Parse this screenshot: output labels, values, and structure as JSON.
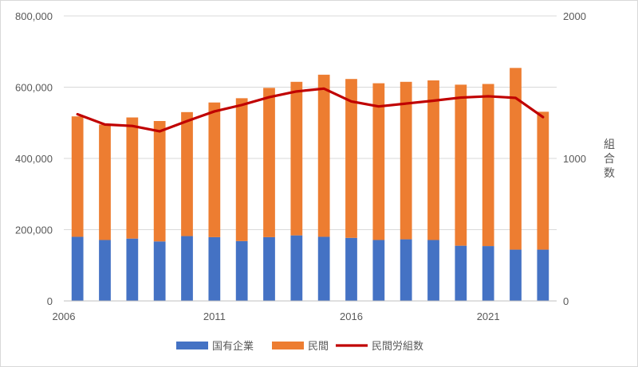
{
  "chart_data": {
    "type": "bar",
    "stacked": true,
    "title": "",
    "x": [
      2006,
      2007,
      2008,
      2009,
      2010,
      2011,
      2012,
      2013,
      2014,
      2015,
      2016,
      2017,
      2018,
      2019,
      2020,
      2021,
      2022,
      2023
    ],
    "x_tick_labels": [
      "2006",
      "2011",
      "2016",
      "2021"
    ],
    "y_left": {
      "range": [
        0,
        800000
      ],
      "ticks": [
        "0",
        "200,000",
        "400,000",
        "600,000",
        "800,000"
      ]
    },
    "y_right": {
      "label": "組合数",
      "range": [
        0,
        2000
      ],
      "ticks": [
        "0",
        "1000",
        "2000"
      ]
    },
    "grid": true,
    "legend_position": "bottom",
    "series": [
      {
        "name": "国有企業",
        "type": "bar",
        "axis": "left",
        "color": "#4472C4",
        "values": [
          180000,
          171000,
          175000,
          167000,
          182000,
          179000,
          168000,
          179000,
          184000,
          180000,
          177000,
          171000,
          173000,
          171000,
          155000,
          154000,
          144000,
          144000
        ]
      },
      {
        "name": "民間",
        "type": "bar",
        "axis": "left",
        "color": "#ED7D31",
        "values": [
          338000,
          324000,
          340000,
          338000,
          348000,
          378000,
          401000,
          419000,
          431000,
          455000,
          446000,
          440000,
          442000,
          448000,
          452000,
          455000,
          510000,
          387000
        ]
      },
      {
        "name": "民間労組数",
        "type": "line",
        "axis": "right",
        "color": "#C00000",
        "values": [
          1310,
          1238,
          1228,
          1190,
          1262,
          1330,
          1375,
          1430,
          1470,
          1490,
          1400,
          1365,
          1385,
          1405,
          1427,
          1436,
          1425,
          1290
        ]
      }
    ]
  }
}
